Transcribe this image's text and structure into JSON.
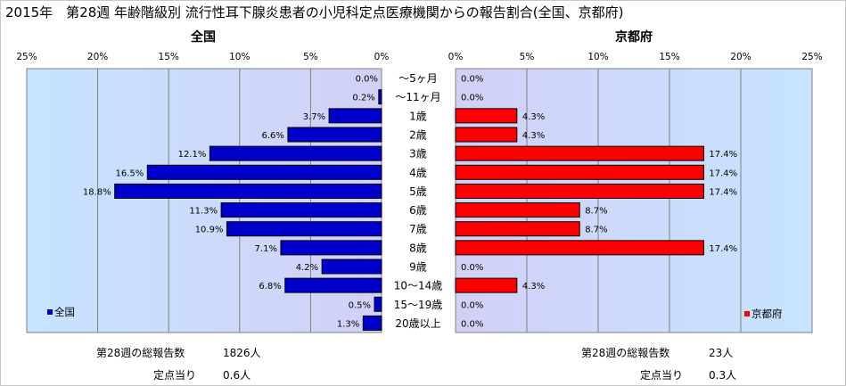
{
  "title": "2015年　第28週 年齢階級別 流行性耳下腺炎患者の小児科定点医療機関からの報告割合(全国、京都府)",
  "chart_data": {
    "type": "bar",
    "orientation": "horizontal",
    "categories": [
      "～5ヶ月",
      "～11ヶ月",
      "1歳",
      "2歳",
      "3歳",
      "4歳",
      "5歳",
      "6歳",
      "7歳",
      "8歳",
      "9歳",
      "10～14歳",
      "15～19歳",
      "20歳以上"
    ],
    "xlim": [
      0,
      25
    ],
    "ticks": [
      "0%",
      "5%",
      "10%",
      "15%",
      "20%",
      "25%"
    ],
    "panels": [
      {
        "title": "全国",
        "series_name": "全国",
        "color": "#0000cc",
        "direction": "left",
        "values": [
          0.0,
          0.2,
          3.7,
          6.6,
          12.1,
          16.5,
          18.8,
          11.3,
          10.9,
          7.1,
          4.2,
          6.8,
          0.5,
          1.3
        ],
        "labels": [
          "0.0%",
          "0.2%",
          "3.7%",
          "6.6%",
          "12.1%",
          "16.5%",
          "18.8%",
          "11.3%",
          "10.9%",
          "7.1%",
          "4.2%",
          "6.8%",
          "0.5%",
          "1.3%"
        ],
        "legend": "全国"
      },
      {
        "title": "京都府",
        "series_name": "京都府",
        "color": "#ff0000",
        "direction": "right",
        "values": [
          0.0,
          0.0,
          4.3,
          4.3,
          17.4,
          17.4,
          17.4,
          8.7,
          8.7,
          17.4,
          0.0,
          4.3,
          0.0,
          0.0
        ],
        "labels": [
          "0.0%",
          "0.0%",
          "4.3%",
          "4.3%",
          "17.4%",
          "17.4%",
          "17.4%",
          "8.7%",
          "8.7%",
          "17.4%",
          "0.0%",
          "4.3%",
          "0.0%",
          "0.0%"
        ],
        "legend": "京都府"
      }
    ],
    "grid": true
  },
  "footer": {
    "left": {
      "total_label": "第28週の総報告数",
      "total_value": "1826人",
      "per_label": "定点当り",
      "per_value": "0.6人"
    },
    "right": {
      "total_label": "第28週の総報告数",
      "total_value": "23人",
      "per_label": "定点当り",
      "per_value": "0.3人"
    }
  }
}
